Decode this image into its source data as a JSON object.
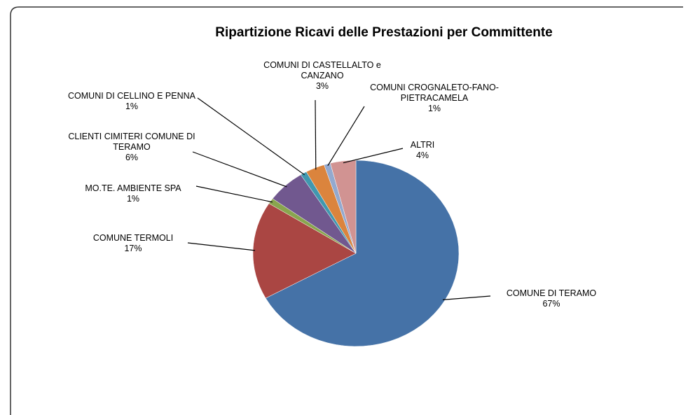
{
  "chart_data": {
    "type": "pie",
    "title": "Ripartizione Ricavi delle Prestazioni per Committente",
    "categories": [
      "COMUNE DI TERAMO",
      "COMUNE TERMOLI",
      "MO.TE. AMBIENTE SPA",
      "CLIENTI CIMITERI COMUNE DI TERAMO",
      "COMUNI DI CELLINO E PENNA",
      "COMUNI DI CASTELLALTO e CANZANO",
      "COMUNI CROGNALETO-FANO-PIETRACAMELA",
      "ALTRI"
    ],
    "values": [
      67,
      17,
      1,
      6,
      1,
      3,
      1,
      4
    ],
    "value_labels": [
      "67%",
      "17%",
      "1%",
      "6%",
      "1%",
      "3%",
      "1%",
      "4%"
    ],
    "colors": [
      "#4572a7",
      "#aa4643",
      "#89a54e",
      "#71588f",
      "#4198af",
      "#db843d",
      "#93a9cf",
      "#d19392"
    ]
  }
}
